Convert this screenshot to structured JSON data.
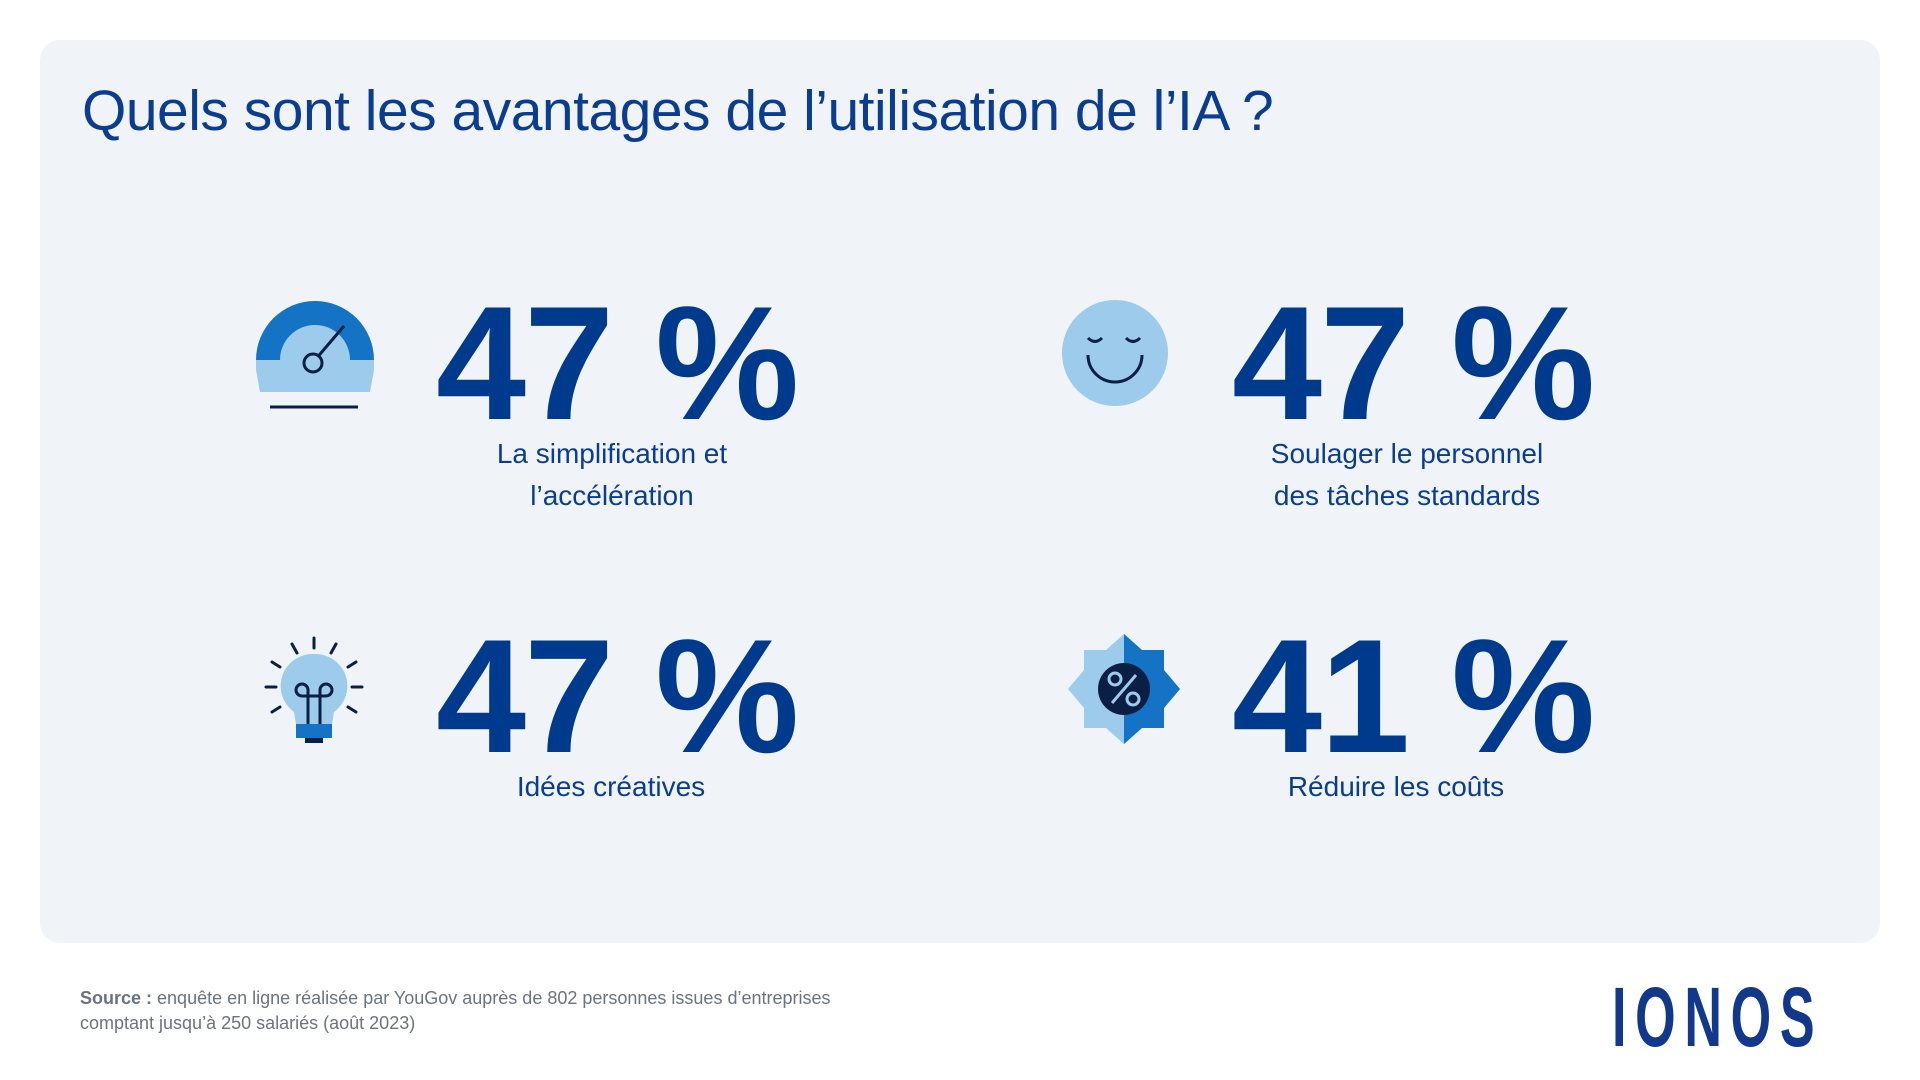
{
  "title": "Quels sont les avantages de l’utilisation de l’IA ?",
  "stats": [
    {
      "value": "47 %",
      "label_line1": "La simplification et",
      "label_line2": "l’accélération",
      "icon": "speedometer-icon"
    },
    {
      "value": "47 %",
      "label_line1": "Soulager le personnel",
      "label_line2": "des tâches standards",
      "icon": "smiley-face-icon"
    },
    {
      "value": "47 %",
      "label_line1": "Idées créatives",
      "label_line2": "",
      "icon": "lightbulb-icon"
    },
    {
      "value": "41 %",
      "label_line1": "Réduire les coûts",
      "label_line2": "",
      "icon": "discount-badge-icon"
    }
  ],
  "source": {
    "prefix": "Source :",
    "line1": " enquête en ligne réalisée par YouGov auprès de 802 personnes issues d’entreprises",
    "line2": "comptant jusqu’à 250 salariés (août 2023)"
  },
  "logo": "IONOS",
  "colors": {
    "dark_blue": "#003a8c",
    "mid_blue": "#1473c4",
    "light_blue": "#9ccbec",
    "navy": "#0b1f44",
    "card_bg": "#f0f4f8"
  }
}
